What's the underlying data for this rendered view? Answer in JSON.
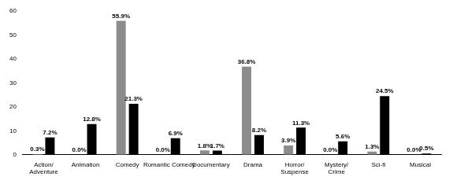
{
  "chart_data": {
    "type": "bar",
    "categories": [
      "Action/ Adventure",
      "Animation",
      "Comedy",
      "Romantic Comedy",
      "Documentary",
      "Drama",
      "Horror/ Suspense",
      "Mystery/ Crime",
      "Sci-fi",
      "Musical"
    ],
    "series": [
      {
        "color": "#8c8c8c",
        "values": [
          0.3,
          0.0,
          55.9,
          0.0,
          1.8,
          36.8,
          3.9,
          0.0,
          1.3,
          0.0
        ],
        "value_labels": [
          "0.3%",
          "0.0%",
          "55.9%",
          "0.0%",
          "1.8%",
          "36.8%",
          "3.9%",
          "0.0%",
          "1.3%",
          "0.0%"
        ]
      },
      {
        "color": "#000000",
        "values": [
          7.2,
          12.8,
          21.3,
          6.9,
          1.7,
          8.2,
          11.3,
          5.6,
          24.5,
          0.5
        ],
        "value_labels": [
          "7.2%",
          "12.8%",
          "21.3%",
          "6.9%",
          "1.7%",
          "8.2%",
          "11.3%",
          "5.6%",
          "24.5%",
          "0.5%"
        ]
      }
    ],
    "ylim": [
      0,
      60
    ],
    "yticks": [
      0,
      10,
      20,
      30,
      40,
      50,
      60
    ],
    "grid": false,
    "data_labels": true
  }
}
